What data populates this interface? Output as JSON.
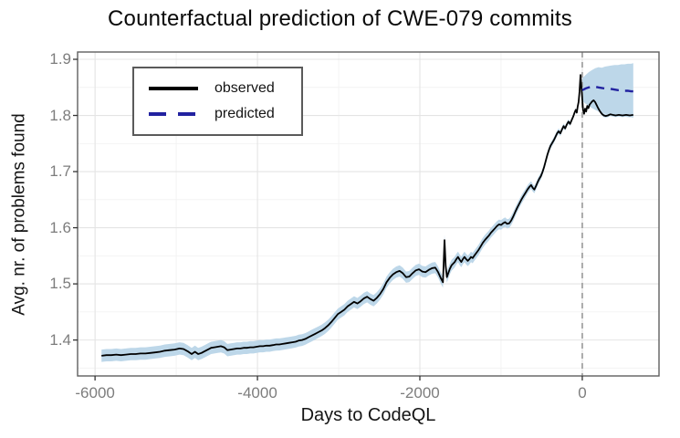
{
  "chart_data": {
    "type": "line",
    "title": "Counterfactual prediction of CWE-079 commits",
    "xlabel": "Days to CodeQL",
    "ylabel": "Avg. nr. of problems found",
    "xlim": [
      -6215,
      945
    ],
    "ylim": [
      1.336,
      1.913
    ],
    "grid": "major+minor",
    "legend_position": "top-left",
    "intervention_x": 0,
    "x_ticks": [
      {
        "value": -6000,
        "label": "-6000"
      },
      {
        "value": -4000,
        "label": "-4000"
      },
      {
        "value": -2000,
        "label": "-2000"
      },
      {
        "value": 0,
        "label": "0"
      }
    ],
    "y_ticks": [
      {
        "value": 1.4,
        "label": "1.4"
      },
      {
        "value": 1.5,
        "label": "1.5"
      },
      {
        "value": 1.6,
        "label": "1.6"
      },
      {
        "value": 1.7,
        "label": "1.7"
      },
      {
        "value": 1.8,
        "label": "1.8"
      },
      {
        "value": 1.9,
        "label": "1.9"
      }
    ],
    "x_minor_gridlines": [
      -5000,
      -3000,
      -1000
    ],
    "y_minor_gridlines": [
      1.35,
      1.45,
      1.55,
      1.65,
      1.75,
      1.85
    ],
    "colors": {
      "observed": "#000000",
      "predicted": "#2222a0",
      "band": "#bdd7e9",
      "intervention_line": "#a3a3a3",
      "grid_major": "#e4e4e4",
      "grid_minor": "#f2f2f2",
      "panel_border": "#5f5f5f",
      "tick_mark": "#333333",
      "tick_label": "#7d7d7d"
    },
    "series": [
      {
        "name": "observed",
        "style": "solid",
        "points": [
          [
            -5920,
            1.372
          ],
          [
            -5860,
            1.373
          ],
          [
            -5800,
            1.373
          ],
          [
            -5740,
            1.374
          ],
          [
            -5680,
            1.373
          ],
          [
            -5620,
            1.374
          ],
          [
            -5560,
            1.375
          ],
          [
            -5500,
            1.375
          ],
          [
            -5440,
            1.376
          ],
          [
            -5380,
            1.376
          ],
          [
            -5320,
            1.377
          ],
          [
            -5260,
            1.378
          ],
          [
            -5200,
            1.379
          ],
          [
            -5140,
            1.381
          ],
          [
            -5080,
            1.382
          ],
          [
            -5020,
            1.383
          ],
          [
            -4960,
            1.385
          ],
          [
            -4910,
            1.384
          ],
          [
            -4860,
            1.38
          ],
          [
            -4810,
            1.375
          ],
          [
            -4770,
            1.379
          ],
          [
            -4730,
            1.375
          ],
          [
            -4690,
            1.377
          ],
          [
            -4650,
            1.38
          ],
          [
            -4610,
            1.383
          ],
          [
            -4570,
            1.386
          ],
          [
            -4530,
            1.387
          ],
          [
            -4490,
            1.388
          ],
          [
            -4450,
            1.389
          ],
          [
            -4410,
            1.387
          ],
          [
            -4370,
            1.382
          ],
          [
            -4330,
            1.383
          ],
          [
            -4290,
            1.384
          ],
          [
            -4250,
            1.385
          ],
          [
            -4210,
            1.385
          ],
          [
            -4170,
            1.386
          ],
          [
            -4130,
            1.386
          ],
          [
            -4090,
            1.387
          ],
          [
            -4050,
            1.387
          ],
          [
            -4010,
            1.388
          ],
          [
            -3970,
            1.389
          ],
          [
            -3930,
            1.389
          ],
          [
            -3890,
            1.39
          ],
          [
            -3850,
            1.39
          ],
          [
            -3810,
            1.391
          ],
          [
            -3770,
            1.392
          ],
          [
            -3730,
            1.392
          ],
          [
            -3690,
            1.393
          ],
          [
            -3650,
            1.394
          ],
          [
            -3610,
            1.395
          ],
          [
            -3570,
            1.396
          ],
          [
            -3530,
            1.397
          ],
          [
            -3490,
            1.399
          ],
          [
            -3450,
            1.4
          ],
          [
            -3410,
            1.402
          ],
          [
            -3370,
            1.405
          ],
          [
            -3330,
            1.408
          ],
          [
            -3290,
            1.411
          ],
          [
            -3250,
            1.414
          ],
          [
            -3210,
            1.417
          ],
          [
            -3170,
            1.421
          ],
          [
            -3130,
            1.426
          ],
          [
            -3090,
            1.432
          ],
          [
            -3050,
            1.439
          ],
          [
            -3010,
            1.446
          ],
          [
            -2970,
            1.45
          ],
          [
            -2930,
            1.454
          ],
          [
            -2890,
            1.46
          ],
          [
            -2850,
            1.464
          ],
          [
            -2810,
            1.468
          ],
          [
            -2770,
            1.465
          ],
          [
            -2730,
            1.469
          ],
          [
            -2690,
            1.474
          ],
          [
            -2650,
            1.477
          ],
          [
            -2610,
            1.473
          ],
          [
            -2570,
            1.47
          ],
          [
            -2530,
            1.475
          ],
          [
            -2490,
            1.482
          ],
          [
            -2450,
            1.491
          ],
          [
            -2410,
            1.503
          ],
          [
            -2370,
            1.511
          ],
          [
            -2330,
            1.517
          ],
          [
            -2290,
            1.521
          ],
          [
            -2250,
            1.523
          ],
          [
            -2210,
            1.519
          ],
          [
            -2170,
            1.512
          ],
          [
            -2130,
            1.513
          ],
          [
            -2090,
            1.519
          ],
          [
            -2050,
            1.524
          ],
          [
            -2010,
            1.526
          ],
          [
            -1970,
            1.522
          ],
          [
            -1930,
            1.521
          ],
          [
            -1890,
            1.525
          ],
          [
            -1850,
            1.528
          ],
          [
            -1810,
            1.529
          ],
          [
            -1775,
            1.521
          ],
          [
            -1745,
            1.511
          ],
          [
            -1715,
            1.503
          ],
          [
            -1697,
            1.578
          ],
          [
            -1682,
            1.532
          ],
          [
            -1667,
            1.512
          ],
          [
            -1650,
            1.519
          ],
          [
            -1630,
            1.527
          ],
          [
            -1610,
            1.533
          ],
          [
            -1590,
            1.536
          ],
          [
            -1570,
            1.539
          ],
          [
            -1550,
            1.544
          ],
          [
            -1530,
            1.548
          ],
          [
            -1510,
            1.543
          ],
          [
            -1490,
            1.539
          ],
          [
            -1470,
            1.544
          ],
          [
            -1450,
            1.548
          ],
          [
            -1430,
            1.544
          ],
          [
            -1410,
            1.541
          ],
          [
            -1390,
            1.544
          ],
          [
            -1370,
            1.548
          ],
          [
            -1350,
            1.546
          ],
          [
            -1325,
            1.551
          ],
          [
            -1300,
            1.556
          ],
          [
            -1275,
            1.561
          ],
          [
            -1250,
            1.567
          ],
          [
            -1225,
            1.573
          ],
          [
            -1200,
            1.578
          ],
          [
            -1175,
            1.582
          ],
          [
            -1150,
            1.586
          ],
          [
            -1125,
            1.591
          ],
          [
            -1100,
            1.595
          ],
          [
            -1075,
            1.599
          ],
          [
            -1050,
            1.603
          ],
          [
            -1025,
            1.606
          ],
          [
            -1000,
            1.605
          ],
          [
            -975,
            1.608
          ],
          [
            -950,
            1.61
          ],
          [
            -925,
            1.607
          ],
          [
            -900,
            1.608
          ],
          [
            -875,
            1.613
          ],
          [
            -850,
            1.62
          ],
          [
            -825,
            1.628
          ],
          [
            -800,
            1.636
          ],
          [
            -775,
            1.643
          ],
          [
            -750,
            1.65
          ],
          [
            -725,
            1.656
          ],
          [
            -700,
            1.662
          ],
          [
            -675,
            1.668
          ],
          [
            -650,
            1.673
          ],
          [
            -630,
            1.676
          ],
          [
            -610,
            1.671
          ],
          [
            -590,
            1.668
          ],
          [
            -570,
            1.674
          ],
          [
            -550,
            1.681
          ],
          [
            -530,
            1.687
          ],
          [
            -510,
            1.692
          ],
          [
            -490,
            1.699
          ],
          [
            -470,
            1.708
          ],
          [
            -450,
            1.719
          ],
          [
            -430,
            1.73
          ],
          [
            -410,
            1.739
          ],
          [
            -390,
            1.746
          ],
          [
            -370,
            1.751
          ],
          [
            -350,
            1.756
          ],
          [
            -330,
            1.762
          ],
          [
            -310,
            1.768
          ],
          [
            -290,
            1.772
          ],
          [
            -270,
            1.768
          ],
          [
            -250,
            1.775
          ],
          [
            -230,
            1.781
          ],
          [
            -210,
            1.777
          ],
          [
            -190,
            1.784
          ],
          [
            -170,
            1.789
          ],
          [
            -150,
            1.785
          ],
          [
            -130,
            1.792
          ],
          [
            -112,
            1.798
          ],
          [
            -95,
            1.805
          ],
          [
            -80,
            1.81
          ],
          [
            -68,
            1.805
          ],
          [
            -56,
            1.816
          ],
          [
            -45,
            1.824
          ],
          [
            -34,
            1.842
          ],
          [
            -22,
            1.872
          ],
          [
            -12,
            1.852
          ],
          [
            0,
            1.83
          ],
          [
            10,
            1.81
          ],
          [
            22,
            1.803
          ],
          [
            35,
            1.812
          ],
          [
            48,
            1.807
          ],
          [
            62,
            1.817
          ],
          [
            76,
            1.813
          ],
          [
            90,
            1.819
          ],
          [
            105,
            1.822
          ],
          [
            122,
            1.825
          ],
          [
            140,
            1.827
          ],
          [
            158,
            1.824
          ],
          [
            175,
            1.819
          ],
          [
            195,
            1.813
          ],
          [
            215,
            1.808
          ],
          [
            240,
            1.803
          ],
          [
            265,
            1.8
          ],
          [
            290,
            1.799
          ],
          [
            315,
            1.8
          ],
          [
            345,
            1.802
          ],
          [
            375,
            1.801
          ],
          [
            410,
            1.8
          ],
          [
            450,
            1.801
          ],
          [
            495,
            1.8
          ],
          [
            540,
            1.801
          ],
          [
            585,
            1.8
          ],
          [
            628,
            1.801
          ]
        ]
      },
      {
        "name": "predicted",
        "style": "dashed",
        "points": [
          [
            0,
            1.845
          ],
          [
            40,
            1.848
          ],
          [
            80,
            1.85
          ],
          [
            120,
            1.851
          ],
          [
            160,
            1.851
          ],
          [
            200,
            1.85
          ],
          [
            240,
            1.849
          ],
          [
            280,
            1.848
          ],
          [
            320,
            1.848
          ],
          [
            360,
            1.847
          ],
          [
            400,
            1.846
          ],
          [
            440,
            1.845
          ],
          [
            480,
            1.845
          ],
          [
            520,
            1.844
          ],
          [
            560,
            1.844
          ],
          [
            600,
            1.843
          ],
          [
            628,
            1.843
          ]
        ]
      }
    ],
    "bands": [
      {
        "name": "observed-ci",
        "mode": "halfwidth-around-observed",
        "keyframes": [
          [
            -5920,
            0.011
          ],
          [
            -4000,
            0.011
          ],
          [
            -3000,
            0.01
          ],
          [
            -1800,
            0.01
          ],
          [
            -1200,
            0.009
          ],
          [
            -800,
            0.008
          ],
          [
            -500,
            0.006
          ],
          [
            -300,
            0.005
          ],
          [
            -150,
            0.004
          ],
          [
            -60,
            0.003
          ],
          [
            0,
            0.003
          ]
        ]
      },
      {
        "name": "prediction-ci",
        "mode": "upper-lower",
        "points": [
          [
            0,
            1.866,
            1.826
          ],
          [
            40,
            1.872,
            1.821
          ],
          [
            80,
            1.877,
            1.817
          ],
          [
            120,
            1.881,
            1.813
          ],
          [
            160,
            1.884,
            1.81
          ],
          [
            200,
            1.886,
            1.807
          ],
          [
            240,
            1.885,
            1.805
          ],
          [
            280,
            1.887,
            1.803
          ],
          [
            320,
            1.888,
            1.802
          ],
          [
            360,
            1.889,
            1.801
          ],
          [
            400,
            1.89,
            1.8
          ],
          [
            440,
            1.89,
            1.799
          ],
          [
            480,
            1.891,
            1.798
          ],
          [
            520,
            1.891,
            1.798
          ],
          [
            560,
            1.892,
            1.797
          ],
          [
            600,
            1.892,
            1.797
          ],
          [
            628,
            1.893,
            1.796
          ]
        ]
      }
    ]
  }
}
